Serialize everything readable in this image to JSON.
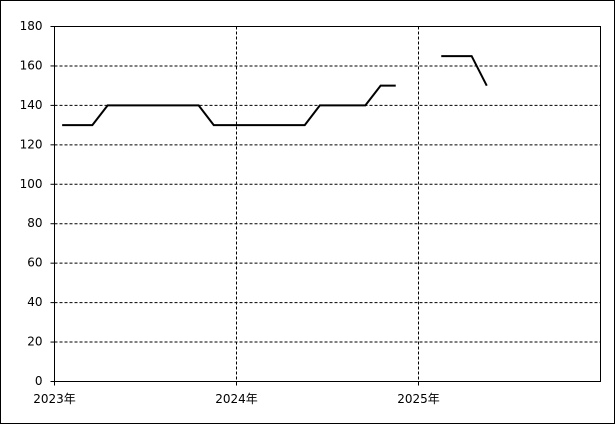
{
  "chart_data": {
    "type": "line",
    "x": [
      2023.042,
      2023.125,
      2023.208,
      2023.292,
      2023.375,
      2023.458,
      2023.542,
      2023.625,
      2023.708,
      2023.792,
      2023.875,
      2023.958,
      2024.042,
      2024.125,
      2024.208,
      2024.292,
      2024.375,
      2024.458,
      2024.542,
      2024.625,
      2024.708,
      2024.792,
      2024.875,
      2024.958,
      2025.042,
      2025.125,
      2025.208,
      2025.292,
      2025.375
    ],
    "values": [
      130,
      130,
      130,
      140,
      140,
      140,
      140,
      140,
      140,
      140,
      130,
      130,
      130,
      130,
      130,
      130,
      130,
      140,
      140,
      140,
      140,
      150,
      150,
      null,
      null,
      165,
      165,
      165,
      150
    ],
    "color": "#000000",
    "xlim": [
      2023,
      2026
    ],
    "xticks": [
      {
        "value": 2023,
        "label": "2023年"
      },
      {
        "value": 2024,
        "label": "2024年"
      },
      {
        "value": 2025,
        "label": "2025年"
      }
    ],
    "ylim": [
      0,
      180
    ],
    "yticks": [
      0,
      20,
      40,
      60,
      80,
      100,
      120,
      140,
      160,
      180
    ],
    "grid": true
  }
}
